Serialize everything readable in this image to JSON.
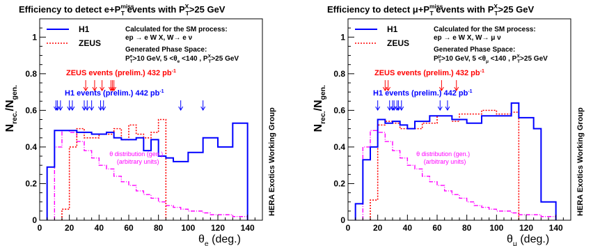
{
  "side_label": "HERA  Exotics Working Group",
  "colors": {
    "h1": "#0000ff",
    "zeus": "#ff0000",
    "theta": "#ff00ff",
    "axis": "#000000"
  },
  "chart_data": [
    {
      "type": "line",
      "title_parts": [
        "Efficiency to detect e+P",
        "miss",
        "T",
        " events with P",
        "X",
        "T",
        ">25 GeV"
      ],
      "ylabel_parts": [
        "N",
        "rec.",
        "/N",
        "gen."
      ],
      "xlabel_parts": [
        "θ",
        "e",
        " (deg.)"
      ],
      "xlim": [
        0,
        150
      ],
      "ylim": [
        0,
        1.1
      ],
      "xticks": [
        0,
        20,
        40,
        60,
        80,
        100,
        120,
        140
      ],
      "yticks": [
        0,
        0.2,
        0.4,
        0.6,
        0.8,
        1
      ],
      "ytick_labels": [
        "0",
        "0.2",
        "0.4",
        "0.6",
        "0.8",
        "1"
      ],
      "legend": [
        {
          "name": "H1",
          "style": "solid"
        },
        {
          "name": "ZEUS",
          "style": "dotted"
        }
      ],
      "info_lines": [
        "Calculated for the SM process:",
        "ep → e W X, W→ e ν"
      ],
      "phase_header": "Generated Phase Space:",
      "phase_parts": [
        "P",
        "e",
        "T",
        ">10 GeV, 5 <θ",
        "e",
        " <140 , P",
        "X",
        "T",
        ">25 GeV"
      ],
      "zeus_label": "ZEUS events (prelim.) 432 pb",
      "zeus_label_sup": "-1",
      "h1_label": "H1 events (prelim.) 442 pb",
      "h1_label_sup": "-1",
      "theta_label": [
        "θ distribution (gen.)",
        "(arbitrary units)"
      ],
      "series": [
        {
          "name": "H1",
          "style": "solid",
          "edges": [
            5,
            10,
            15,
            20,
            25,
            30,
            35,
            40,
            45,
            50,
            55,
            60,
            65,
            70,
            75,
            80,
            85,
            90,
            100,
            110,
            120,
            130,
            140
          ],
          "values": [
            0.29,
            0.49,
            0.49,
            0.49,
            0.48,
            0.48,
            0.47,
            0.47,
            0.48,
            0.45,
            0.44,
            0.44,
            0.45,
            0.38,
            0.44,
            0.35,
            0.34,
            0.32,
            0.37,
            0.45,
            0.4,
            0.53
          ]
        },
        {
          "name": "ZEUS",
          "style": "dotted",
          "edges": [
            15,
            20,
            25,
            30,
            35,
            40,
            45,
            50,
            55,
            60,
            65,
            70,
            75,
            80,
            85
          ],
          "values": [
            0.06,
            0.4,
            0.5,
            0.45,
            0.45,
            0.47,
            0.47,
            0.5,
            0.44,
            0.52,
            0.47,
            0.45,
            0.48,
            0.55
          ]
        },
        {
          "name": "θ distribution",
          "style": "dashdot",
          "edges": [
            10,
            15,
            20,
            25,
            30,
            35,
            40,
            45,
            50,
            55,
            60,
            65,
            70,
            75,
            80,
            85,
            90,
            95,
            100,
            105,
            110,
            115,
            120,
            125,
            130,
            135,
            140
          ],
          "values": [
            0.4,
            0.49,
            0.48,
            0.43,
            0.38,
            0.34,
            0.3,
            0.28,
            0.24,
            0.21,
            0.19,
            0.16,
            0.14,
            0.12,
            0.1,
            0.08,
            0.07,
            0.06,
            0.05,
            0.05,
            0.04,
            0.03,
            0.03,
            0.03,
            0.02,
            0.02
          ]
        }
      ],
      "zeus_arrows": [
        31,
        37,
        42,
        48,
        49,
        50
      ],
      "h1_arrows": [
        11,
        12,
        14,
        20,
        22,
        30,
        32,
        35,
        41,
        43,
        95,
        110
      ]
    },
    {
      "type": "line",
      "title_parts": [
        "Efficiency to detect μ+P",
        "miss",
        "T",
        " events with P",
        "X",
        "T",
        ">25 GeV"
      ],
      "ylabel_parts": [
        "N",
        "rec.",
        "/N",
        "gen."
      ],
      "xlabel_parts": [
        "θ",
        "μ",
        " (deg.)"
      ],
      "xlim": [
        0,
        150
      ],
      "ylim": [
        0,
        1.1
      ],
      "xticks": [
        0,
        20,
        40,
        60,
        80,
        100,
        120,
        140
      ],
      "yticks": [
        0,
        0.2,
        0.4,
        0.6,
        0.8,
        1
      ],
      "ytick_labels": [
        "0",
        "0.2",
        "0.4",
        "0.6",
        "0.8",
        "1"
      ],
      "legend": [
        {
          "name": "H1",
          "style": "solid"
        },
        {
          "name": "ZEUS",
          "style": "dotted"
        }
      ],
      "info_lines": [
        "Calculated for the SM process:",
        "ep → e W X, W→ μ ν"
      ],
      "phase_header": "Generated Phase Space:",
      "phase_parts": [
        "P",
        "μ",
        "T",
        ">10 GeV, 5 <θ",
        "μ",
        " <140 , P",
        "X",
        "T",
        ">25 GeV"
      ],
      "zeus_label": "ZEUS events (prelim.) 432 pb",
      "zeus_label_sup": "-1",
      "h1_label": "H1 events (prelim.) 442 pb",
      "h1_label_sup": "-1",
      "theta_label": [
        "θ distribution (gen.)",
        "(arbitrary units)"
      ],
      "series": [
        {
          "name": "H1",
          "style": "solid",
          "edges": [
            5,
            10,
            15,
            20,
            25,
            30,
            35,
            40,
            45,
            55,
            60,
            65,
            70,
            80,
            90,
            100,
            110,
            115,
            120,
            125,
            130,
            140
          ],
          "values": [
            0.09,
            0.33,
            0.4,
            0.55,
            0.53,
            0.54,
            0.52,
            0.5,
            0.54,
            0.57,
            0.57,
            0.57,
            0.55,
            0.53,
            0.57,
            0.57,
            0.64,
            0.56,
            0.56,
            0.5,
            0.1
          ]
        },
        {
          "name": "ZEUS",
          "style": "dotted",
          "edges": [
            15,
            20,
            25,
            30,
            35,
            40,
            50,
            55,
            60,
            70,
            75,
            80,
            90,
            100,
            110,
            115
          ],
          "values": [
            0.11,
            0.52,
            0.54,
            0.53,
            0.5,
            0.5,
            0.53,
            0.53,
            0.57,
            0.54,
            0.58,
            0.58,
            0.6,
            0.58,
            0.59
          ]
        },
        {
          "name": "θ distribution",
          "style": "dashdot",
          "edges": [
            10,
            15,
            20,
            25,
            30,
            35,
            40,
            45,
            50,
            55,
            60,
            65,
            70,
            75,
            80,
            85,
            90,
            95,
            100,
            105,
            110,
            115,
            120,
            125,
            130,
            135,
            140
          ],
          "values": [
            0.4,
            0.49,
            0.48,
            0.43,
            0.38,
            0.34,
            0.3,
            0.28,
            0.24,
            0.21,
            0.19,
            0.16,
            0.14,
            0.12,
            0.1,
            0.08,
            0.07,
            0.06,
            0.05,
            0.05,
            0.04,
            0.03,
            0.03,
            0.03,
            0.02,
            0.02
          ]
        }
      ],
      "zeus_arrows": [
        25,
        27,
        63,
        73
      ],
      "h1_arrows": [
        20,
        28,
        30,
        31,
        33,
        34,
        36,
        62,
        67
      ]
    }
  ]
}
